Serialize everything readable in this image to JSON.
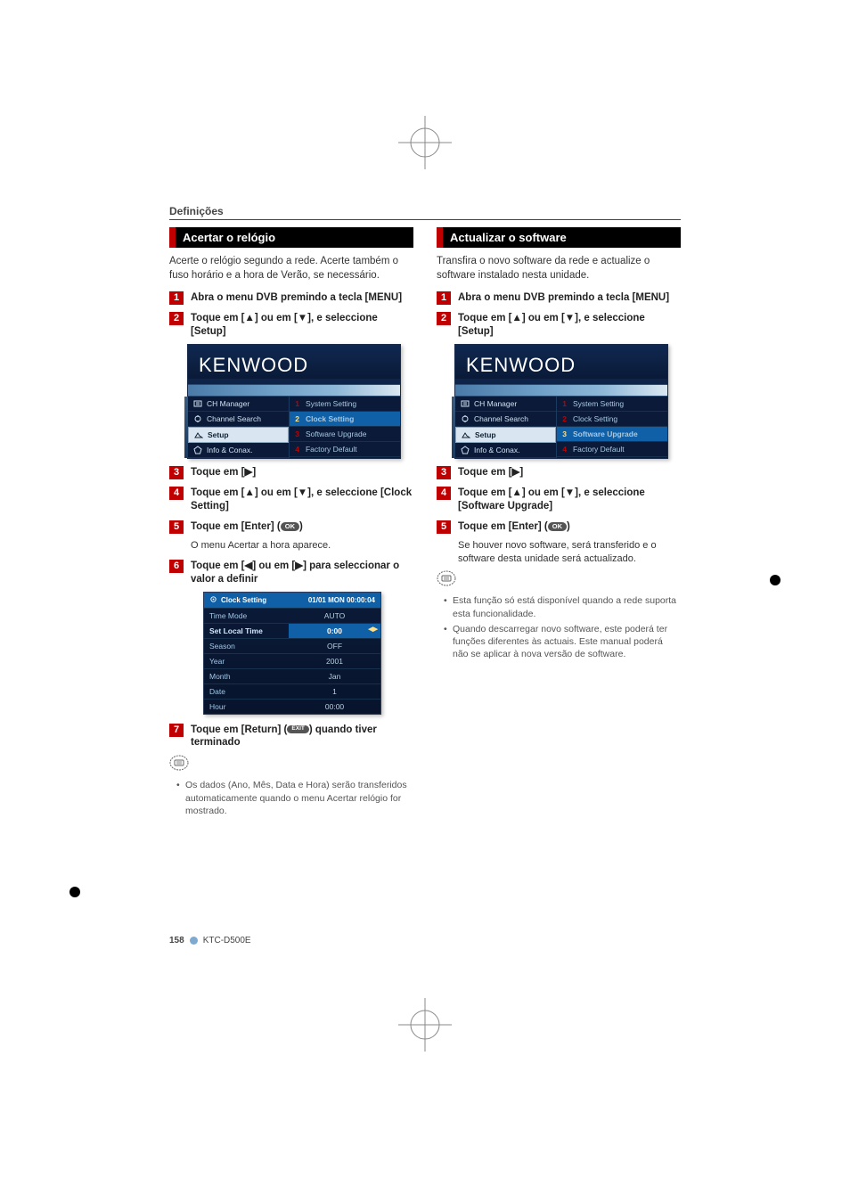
{
  "section_label": "Definições",
  "left": {
    "header": "Acertar o relógio",
    "intro": "Acerte o relógio segundo a rede. Acerte também o fuso horário e a hora de Verão, se necessário.",
    "steps": {
      "s1": "Abra o menu DVB premindo a tecla [MENU]",
      "s2": "Toque em [▲] ou em [▼], e seleccione [Setup]",
      "s3": "Toque em [▶]",
      "s4": "Toque em [▲] ou em [▼], e seleccione [Clock Setting]",
      "s5_pre": "Toque em [Enter] (",
      "s5_post": ")",
      "s5_sub": "O menu Acertar a hora aparece.",
      "s6": "Toque em [◀] ou em [▶] para seleccionar o valor a definir",
      "s7_pre": "Toque em [Return] (",
      "s7_post": ") quando tiver terminado"
    },
    "notes": [
      "Os dados (Ano, Mês, Data e Hora) serão transferidos automaticamente quando o menu Acertar relógio for mostrado."
    ],
    "menu": {
      "logo": "KENWOOD",
      "left_items": [
        "CH Manager",
        "Channel Search",
        "Setup",
        "Info & Conax."
      ],
      "left_sel_index": 2,
      "right_items": [
        "System Setting",
        "Clock Setting",
        "Software Upgrade",
        "Factory Default"
      ],
      "right_sel_index": 1
    },
    "clock": {
      "title": "Clock Setting",
      "time_tag": "01/01 MON  00:00:04",
      "rows": [
        {
          "l": "Time Mode",
          "r": "AUTO"
        },
        {
          "l": "Set Local Time",
          "r": "0:00",
          "sel": true
        },
        {
          "l": "Season",
          "r": "OFF"
        },
        {
          "l": "Year",
          "r": "2001"
        },
        {
          "l": "Month",
          "r": "Jan"
        },
        {
          "l": "Date",
          "r": "1"
        },
        {
          "l": "Hour",
          "r": "00:00"
        }
      ]
    }
  },
  "right": {
    "header": "Actualizar o software",
    "intro": "Transfira o novo software da rede e actualize o software instalado nesta unidade.",
    "steps": {
      "s1": "Abra o menu DVB premindo a tecla [MENU]",
      "s2": "Toque em [▲] ou em [▼], e seleccione [Setup]",
      "s3": "Toque em [▶]",
      "s4": "Toque em [▲] ou em [▼], e seleccione [Software Upgrade]",
      "s5_pre": "Toque em [Enter] (",
      "s5_post": ")",
      "s5_sub": "Se houver novo software, será transferido e o software desta unidade será actualizado."
    },
    "notes": [
      "Esta função só está disponível quando a rede suporta esta funcionalidade.",
      "Quando descarregar novo software, este poderá ter funções diferentes às actuais. Este manual poderá não se aplicar à nova versão de software."
    ],
    "menu": {
      "logo": "KENWOOD",
      "left_items": [
        "CH Manager",
        "Channel Search",
        "Setup",
        "Info & Conax."
      ],
      "left_sel_index": 2,
      "right_items": [
        "System Setting",
        "Clock Setting",
        "Software Upgrade",
        "Factory Default"
      ],
      "right_sel_index": 2
    }
  },
  "footer": {
    "page": "158",
    "model": "KTC-D500E"
  },
  "colors": {
    "red": "#c00000",
    "black": "#000000",
    "menu_bg_top": "#0f2850",
    "menu_bg_bot": "#0a1a38",
    "menu_sel_left": "#d9e6f2",
    "menu_sel_right": "#1060a8",
    "footer_dot": "#7faad0"
  },
  "typography": {
    "body_pt": 11.5,
    "step_pt": 11.5,
    "note_pt": 10.5,
    "menu_pt": 8.5,
    "bar_title_pt": 13
  }
}
